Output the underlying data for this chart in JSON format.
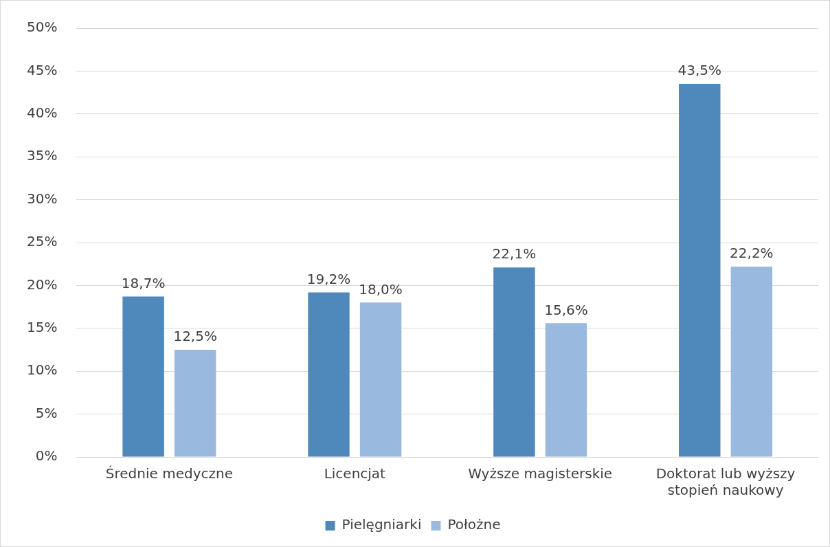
{
  "chart_data": {
    "type": "bar",
    "categories": [
      "Średnie medyczne",
      "Licencjat",
      "Wyższe magisterskie",
      "Doktorat lub wyższy stopień naukowy"
    ],
    "series": [
      {
        "name": "Pielęgniarki",
        "color": "#4f88bb",
        "values": [
          18.7,
          19.2,
          22.1,
          43.5
        ],
        "value_labels": [
          "18,7%",
          "19,2%",
          "22,1%",
          "43,5%"
        ]
      },
      {
        "name": "Położne",
        "color": "#9ab9df",
        "values": [
          12.5,
          18.0,
          15.6,
          22.2
        ],
        "value_labels": [
          "12,5%",
          "18,0%",
          "15,6%",
          "22,2%"
        ]
      }
    ],
    "ylim": [
      0,
      50
    ],
    "yticks": [
      {
        "value": 0,
        "label": "0%"
      },
      {
        "value": 5,
        "label": "5%"
      },
      {
        "value": 10,
        "label": "10%"
      },
      {
        "value": 15,
        "label": "15%"
      },
      {
        "value": 20,
        "label": "20%"
      },
      {
        "value": 25,
        "label": "25%"
      },
      {
        "value": 30,
        "label": "30%"
      },
      {
        "value": 35,
        "label": "35%"
      },
      {
        "value": 40,
        "label": "40%"
      },
      {
        "value": 45,
        "label": "45%"
      },
      {
        "value": 50,
        "label": "50%"
      }
    ],
    "grid": "y",
    "legend": "bottom"
  }
}
